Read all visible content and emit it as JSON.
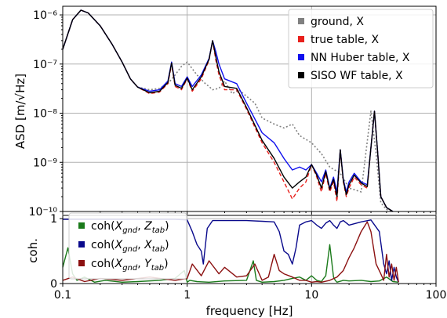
{
  "chart_data": [
    {
      "type": "line",
      "panel": "top",
      "xscale": "log",
      "yscale": "log",
      "xlim": [
        0.1,
        100
      ],
      "ylim": [
        1e-10,
        1.5e-06
      ],
      "grid": true,
      "ylabel": "ASD [m/√Hz]",
      "xlabel": "",
      "ytick_labels": [
        "10⁻⁶",
        "10⁻⁷",
        "10⁻⁸",
        "10⁻⁹",
        "10⁻¹⁰"
      ],
      "yticks": [
        1e-06,
        1e-07,
        1e-08,
        1e-09,
        1e-10
      ],
      "legend_position": "top-right",
      "series": [
        {
          "name": "ground, X",
          "color": "#808080",
          "style": "dotted",
          "x": [
            0.1,
            0.12,
            0.14,
            0.16,
            0.2,
            0.25,
            0.3,
            0.35,
            0.4,
            0.5,
            0.6,
            0.7,
            0.8,
            0.9,
            1.0,
            1.2,
            1.4,
            1.5,
            1.6,
            1.8,
            2.0,
            2.3,
            2.6,
            3.0,
            3.5,
            4.0,
            5.0,
            6.0,
            7.0,
            8.0,
            10,
            12,
            14,
            17,
            20,
            25,
            30,
            33,
            36,
            40,
            45
          ],
          "y": [
            2e-07,
            8e-07,
            1.25e-06,
            1.1e-06,
            6e-07,
            2.5e-07,
            1.1e-07,
            5e-08,
            3.4e-08,
            3e-08,
            3.2e-08,
            4e-08,
            6e-08,
            9e-08,
            1.1e-07,
            6e-08,
            4e-08,
            3.5e-08,
            3e-08,
            3.2e-08,
            4.5e-08,
            2.5e-08,
            3e-08,
            2.2e-08,
            1.6e-08,
            8e-09,
            6e-09,
            5e-09,
            6e-09,
            3.5e-09,
            2.5e-09,
            1.5e-09,
            8e-10,
            6e-10,
            3e-10,
            2.5e-10,
            1.1e-08,
            1.5e-09,
            1.5e-10,
            1.1e-10,
            1e-10
          ]
        },
        {
          "name": "true table, X",
          "color": "#e8201c",
          "style": "dashed",
          "x": [
            0.1,
            0.12,
            0.14,
            0.16,
            0.2,
            0.25,
            0.3,
            0.35,
            0.4,
            0.5,
            0.6,
            0.7,
            0.75,
            0.8,
            0.9,
            1.0,
            1.1,
            1.3,
            1.5,
            1.6,
            1.7,
            1.8,
            2.0,
            2.5,
            3.0,
            4.0,
            5.0,
            6.0,
            7.0,
            8.0,
            9.0,
            10,
            11,
            12,
            13,
            14,
            15,
            16,
            17,
            18,
            19,
            20,
            22,
            25,
            28,
            30,
            32,
            34,
            36,
            40,
            45
          ],
          "y": [
            2e-07,
            8e-07,
            1.25e-06,
            1.1e-06,
            6e-07,
            2.5e-07,
            1.1e-07,
            5e-08,
            3.4e-08,
            2.5e-08,
            2.7e-08,
            4e-08,
            1e-07,
            3.5e-08,
            3e-08,
            5e-08,
            2.8e-08,
            5e-08,
            1.2e-07,
            3e-07,
            1.2e-07,
            6e-08,
            3e-08,
            3e-08,
            1.2e-08,
            2.5e-09,
            1e-09,
            4e-10,
            1.8e-10,
            3e-10,
            4e-10,
            9e-10,
            5e-10,
            2.5e-10,
            6e-10,
            2.5e-10,
            4e-10,
            1.6e-10,
            1.8e-09,
            4e-10,
            2e-10,
            3e-10,
            5e-10,
            3.5e-10,
            3e-10,
            2e-09,
            1.1e-08,
            1.5e-09,
            2e-10,
            1.2e-10,
            1e-10
          ]
        },
        {
          "name": "NN Huber table, X",
          "color": "#1010ee",
          "style": "solid",
          "x": [
            0.1,
            0.12,
            0.14,
            0.16,
            0.2,
            0.25,
            0.3,
            0.35,
            0.4,
            0.5,
            0.6,
            0.7,
            0.75,
            0.8,
            0.9,
            1.0,
            1.1,
            1.3,
            1.5,
            1.6,
            1.7,
            1.8,
            2.0,
            2.5,
            3.0,
            4.0,
            5.0,
            6.0,
            7.0,
            8.0,
            9.0,
            10,
            11,
            12,
            13,
            14,
            15,
            16,
            17,
            18,
            19,
            20,
            22,
            25,
            28,
            30,
            32,
            34,
            36,
            40,
            45
          ],
          "y": [
            2e-07,
            8e-07,
            1.25e-06,
            1.1e-06,
            6e-07,
            2.5e-07,
            1.1e-07,
            5e-08,
            3.4e-08,
            2.8e-08,
            3e-08,
            4.5e-08,
            1.1e-07,
            4e-08,
            3.5e-08,
            5.5e-08,
            3.5e-08,
            6e-08,
            1.3e-07,
            3e-07,
            1.8e-07,
            1e-07,
            5e-08,
            4e-08,
            1.6e-08,
            4e-09,
            2.5e-09,
            1.2e-09,
            7e-10,
            8e-10,
            7e-10,
            9e-10,
            6e-10,
            4e-10,
            7e-10,
            3e-10,
            5e-10,
            2.5e-10,
            1.8e-09,
            4.5e-10,
            2.5e-10,
            4e-10,
            6e-10,
            4e-10,
            3.5e-10,
            2e-09,
            1.1e-08,
            1.5e-09,
            2e-10,
            1.2e-10,
            1e-10
          ]
        },
        {
          "name": "SISO WF table, X",
          "color": "#000000",
          "style": "solid",
          "x": [
            0.1,
            0.12,
            0.14,
            0.16,
            0.2,
            0.25,
            0.3,
            0.35,
            0.4,
            0.5,
            0.6,
            0.7,
            0.75,
            0.8,
            0.9,
            1.0,
            1.1,
            1.3,
            1.5,
            1.6,
            1.7,
            1.8,
            2.0,
            2.5,
            3.0,
            4.0,
            5.0,
            6.0,
            7.0,
            8.0,
            9.0,
            10,
            11,
            12,
            13,
            14,
            15,
            16,
            17,
            18,
            19,
            20,
            22,
            25,
            28,
            30,
            32,
            34,
            36,
            40,
            45
          ],
          "y": [
            2e-07,
            8e-07,
            1.25e-06,
            1.1e-06,
            6e-07,
            2.5e-07,
            1.1e-07,
            5e-08,
            3.4e-08,
            2.6e-08,
            2.8e-08,
            4.2e-08,
            1.05e-07,
            3.7e-08,
            3.2e-08,
            5.2e-08,
            3e-08,
            5.5e-08,
            1.25e-07,
            3e-07,
            1.4e-07,
            7e-08,
            3.5e-08,
            3.2e-08,
            1.3e-08,
            2.8e-09,
            1.2e-09,
            5e-10,
            3e-10,
            4e-10,
            5e-10,
            9e-10,
            5.5e-10,
            3e-10,
            6.5e-10,
            2.8e-10,
            4.5e-10,
            2e-10,
            1.8e-09,
            4.2e-10,
            2.2e-10,
            3.5e-10,
            5.5e-10,
            3.8e-10,
            3.2e-10,
            2e-09,
            1.1e-08,
            1.5e-09,
            2e-10,
            1.2e-10,
            1e-10
          ]
        }
      ]
    },
    {
      "type": "line",
      "panel": "bottom",
      "xscale": "log",
      "yscale": "linear",
      "xlim": [
        0.1,
        100
      ],
      "ylim": [
        0,
        1.05
      ],
      "grid": true,
      "ylabel": "coh.",
      "xlabel": "frequency [Hz]",
      "xtick_labels": [
        "0.1",
        "1",
        "10",
        "100"
      ],
      "xticks": [
        0.1,
        1,
        10,
        100
      ],
      "ytick_labels": [
        "0",
        "1"
      ],
      "yticks": [
        0,
        1
      ],
      "legend_position": "top-left",
      "series": [
        {
          "name": "coh(X_gnd, Z_tab)",
          "legend": {
            "pre": "coh(",
            "a": "X",
            "a_sub": "gnd",
            "mid": ", ",
            "b": "Z",
            "b_sub": "tab",
            "post": ")"
          },
          "color": "#1a7a1a",
          "style": "solid",
          "x": [
            0.1,
            0.11,
            0.12,
            0.13,
            0.15,
            0.18,
            0.22,
            0.3,
            0.4,
            0.6,
            0.8,
            0.95,
            1.0,
            1.05,
            1.2,
            1.5,
            2,
            3,
            3.4,
            3.6,
            4,
            5,
            6,
            7,
            8,
            9,
            10,
            11,
            12,
            12.5,
            13,
            14,
            15,
            15.5,
            16,
            18,
            20,
            25,
            30,
            35,
            40,
            45,
            50
          ],
          "y": [
            0.25,
            0.55,
            0.15,
            0.05,
            0.1,
            0.02,
            0.05,
            0.02,
            0.03,
            0.05,
            0.08,
            0.2,
            0.02,
            0.05,
            0.03,
            0.02,
            0.04,
            0.05,
            0.35,
            0.05,
            0.02,
            0.03,
            0.05,
            0.08,
            0.1,
            0.05,
            0.12,
            0.05,
            0.03,
            0.08,
            0.12,
            0.6,
            0.1,
            0.05,
            0.02,
            0.05,
            0.04,
            0.05,
            0.03,
            0.04,
            0.1,
            0.03,
            0.02
          ]
        },
        {
          "name": "coh(X_gnd, X_tab)",
          "legend": {
            "pre": "coh(",
            "a": "X",
            "a_sub": "gnd",
            "mid": ", ",
            "b": "X",
            "b_sub": "tab",
            "post": ")"
          },
          "color": "#0a0a8c",
          "style": "solid",
          "x": [
            0.1,
            0.12,
            0.15,
            0.2,
            0.3,
            0.5,
            0.8,
            1.0,
            1.1,
            1.2,
            1.3,
            1.35,
            1.45,
            1.6,
            2,
            3,
            4,
            5,
            5.5,
            6,
            6.5,
            7,
            7.5,
            8,
            9,
            10,
            11,
            12,
            13,
            14,
            15,
            16,
            17,
            18,
            20,
            25,
            30,
            35,
            38,
            40,
            42,
            44,
            46,
            48,
            50
          ],
          "y": [
            0.99,
            0.99,
            0.99,
            0.99,
            0.99,
            0.99,
            0.99,
            0.98,
            0.8,
            0.6,
            0.5,
            0.3,
            0.85,
            0.97,
            0.97,
            0.97,
            0.96,
            0.95,
            0.8,
            0.5,
            0.45,
            0.3,
            0.55,
            0.9,
            0.95,
            0.97,
            0.9,
            0.85,
            0.93,
            0.97,
            0.9,
            0.85,
            0.95,
            0.97,
            0.9,
            0.95,
            0.98,
            0.8,
            0.3,
            0.15,
            0.35,
            0.05,
            0.25,
            0.1,
            0.02
          ]
        },
        {
          "name": "coh(X_gnd, Y_tab)",
          "legend": {
            "pre": "coh(",
            "a": "X",
            "a_sub": "gnd",
            "mid": ", ",
            "b": "Y",
            "b_sub": "tab",
            "post": ")"
          },
          "color": "#8b1010",
          "style": "solid",
          "x": [
            0.1,
            0.12,
            0.15,
            0.2,
            0.3,
            0.5,
            0.8,
            1.0,
            1.1,
            1.3,
            1.5,
            1.8,
            2,
            2.5,
            3,
            3.5,
            4,
            4.5,
            5,
            5.5,
            6,
            7,
            8,
            9,
            10,
            11,
            12,
            14,
            16,
            18,
            20,
            22,
            25,
            28,
            30,
            33,
            36,
            38,
            40,
            42,
            44,
            46,
            48,
            50
          ],
          "y": [
            0.05,
            0.1,
            0.03,
            0.08,
            0.05,
            0.1,
            0.05,
            0.08,
            0.3,
            0.12,
            0.35,
            0.15,
            0.25,
            0.1,
            0.12,
            0.3,
            0.05,
            0.1,
            0.45,
            0.2,
            0.15,
            0.1,
            0.05,
            0.05,
            0.02,
            0.03,
            0.02,
            0.05,
            0.1,
            0.2,
            0.4,
            0.55,
            0.8,
            0.95,
            0.8,
            0.3,
            0.15,
            0.05,
            0.45,
            0.1,
            0.3,
            0.05,
            0.25,
            0.02
          ]
        }
      ]
    }
  ]
}
